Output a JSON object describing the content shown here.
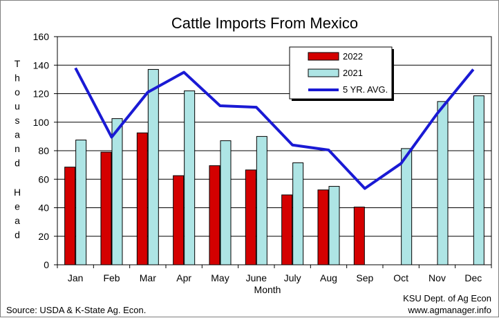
{
  "chart_data": {
    "type": "bar",
    "title": "Cattle Imports From Mexico",
    "xlabel": "Month",
    "ylabel": "Thousand Head",
    "ylabel_words": [
      "Thousand",
      "Head"
    ],
    "ylim": [
      0,
      160
    ],
    "yticks": [
      0,
      20,
      40,
      60,
      80,
      100,
      120,
      140,
      160
    ],
    "grid": true,
    "legend_position": "top-right",
    "categories": [
      "Jan",
      "Feb",
      "Mar",
      "Apr",
      "May",
      "June",
      "July",
      "Aug",
      "Sep",
      "Oct",
      "Nov",
      "Dec"
    ],
    "series": [
      {
        "name": "2022",
        "kind": "bar",
        "color": "#d40000",
        "values": [
          68.5,
          79,
          92.5,
          62.5,
          69.5,
          66.5,
          49,
          52.5,
          40.5,
          null,
          null,
          null
        ]
      },
      {
        "name": "2021",
        "kind": "bar",
        "color": "#aee5e5",
        "values": [
          87.5,
          102.5,
          137,
          122,
          87,
          90,
          71.5,
          55,
          null,
          81.5,
          114.5,
          118.5
        ]
      },
      {
        "name": "5 YR. AVG.",
        "kind": "line",
        "color": "#1a1ad4",
        "values": [
          138,
          89.5,
          121,
          135,
          111.5,
          110.5,
          84,
          80.5,
          53.5,
          71,
          106,
          137
        ]
      }
    ]
  },
  "footer": {
    "source": "Source:  USDA & K-State Ag. Econ.",
    "credit_line1": "KSU Dept. of Ag Econ",
    "credit_line2": "www.agmanager.info"
  }
}
